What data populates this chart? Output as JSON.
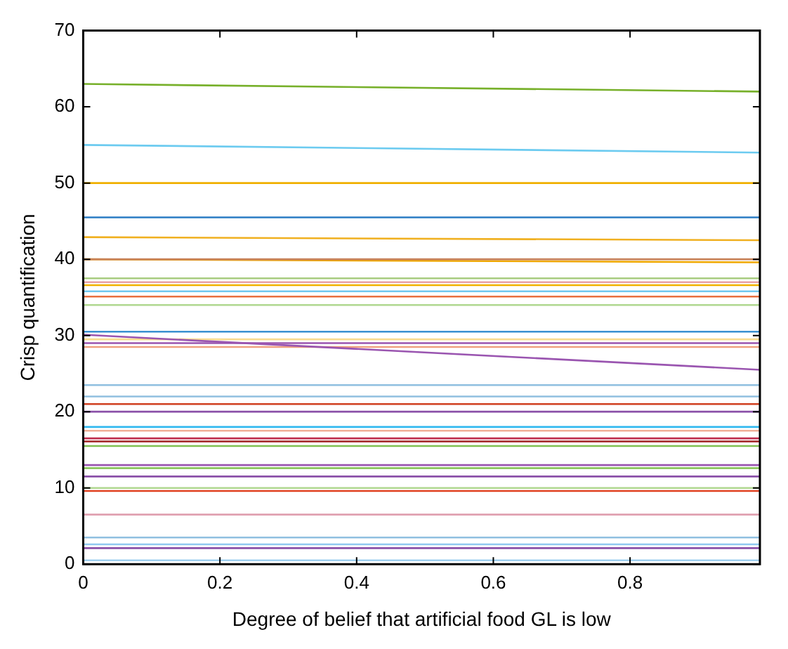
{
  "chart_data": {
    "type": "line",
    "xlabel": "Degree of belief that artificial food GL is low",
    "ylabel": "Crisp quantification",
    "x": [
      0,
      0.99
    ],
    "xlim": [
      0,
      0.99
    ],
    "xticks": [
      0,
      0.2,
      0.4,
      0.6,
      0.8
    ],
    "ylim": [
      0,
      70
    ],
    "yticks": [
      0,
      10,
      20,
      30,
      40,
      50,
      60,
      70
    ],
    "grid": false,
    "legend": false,
    "marker": "none",
    "line_style": "solid",
    "series": [
      {
        "color": "#77b02a",
        "values": [
          63,
          62
        ]
      },
      {
        "color": "#6ccbf0",
        "values": [
          55,
          54
        ]
      },
      {
        "color": "#f0b000",
        "values": [
          50,
          50
        ]
      },
      {
        "color": "#2b7cc4",
        "values": [
          45.5,
          45.5
        ]
      },
      {
        "color": "#f0b020",
        "values": [
          42.9,
          42.5
        ]
      },
      {
        "color": "#c8825a",
        "values": [
          40,
          40
        ]
      },
      {
        "color": "#f0a800",
        "values": [
          40,
          39.6
        ]
      },
      {
        "color": "#a8cc80",
        "values": [
          37.5,
          37.5
        ]
      },
      {
        "color": "#e8a0a8",
        "values": [
          37,
          37
        ]
      },
      {
        "color": "#f0b000",
        "values": [
          36.6,
          36.6
        ]
      },
      {
        "color": "#70c8f0",
        "values": [
          35.8,
          35.8
        ]
      },
      {
        "color": "#e87040",
        "values": [
          35.1,
          35.1
        ]
      },
      {
        "color": "#b0d890",
        "values": [
          34,
          34
        ]
      },
      {
        "color": "#3a90d0",
        "values": [
          30.5,
          30.5
        ]
      },
      {
        "color": "#9a55b0",
        "values": [
          30.1,
          25.5
        ]
      },
      {
        "color": "#f8dc90",
        "values": [
          29.5,
          29.5
        ]
      },
      {
        "color": "#9a55b0",
        "values": [
          29,
          29
        ]
      },
      {
        "color": "#f0a080",
        "values": [
          28.5,
          28.5
        ]
      },
      {
        "color": "#90c0e0",
        "values": [
          23.5,
          23.5
        ]
      },
      {
        "color": "#90c0e0",
        "values": [
          22,
          22
        ]
      },
      {
        "color": "#d04020",
        "values": [
          21,
          21
        ]
      },
      {
        "color": "#8a50a8",
        "values": [
          20,
          20
        ]
      },
      {
        "color": "#30b8f0",
        "values": [
          18,
          18
        ]
      },
      {
        "color": "#f0b098",
        "values": [
          17.5,
          17.5
        ]
      },
      {
        "color": "#c03050",
        "values": [
          16.5,
          16.5
        ]
      },
      {
        "color": "#a02020",
        "values": [
          16.1,
          16.1
        ]
      },
      {
        "color": "#80c050",
        "values": [
          15.5,
          15.5
        ]
      },
      {
        "color": "#9a55b0",
        "values": [
          13,
          13
        ]
      },
      {
        "color": "#80c050",
        "values": [
          12.6,
          12.6
        ]
      },
      {
        "color": "#8a50a8",
        "values": [
          11.5,
          11.5
        ]
      },
      {
        "color": "#b0d890",
        "values": [
          10,
          10
        ]
      },
      {
        "color": "#e04020",
        "values": [
          9.6,
          9.6
        ]
      },
      {
        "color": "#e0a0b0",
        "values": [
          6.5,
          6.5
        ]
      },
      {
        "color": "#90c0e0",
        "values": [
          3.5,
          3.5
        ]
      },
      {
        "color": "#90c8f0",
        "values": [
          2.6,
          2.6
        ]
      },
      {
        "color": "#8a50a8",
        "values": [
          2.1,
          2.1
        ]
      },
      {
        "color": "#a0d0f0",
        "values": [
          0.5,
          0.5
        ]
      }
    ]
  }
}
